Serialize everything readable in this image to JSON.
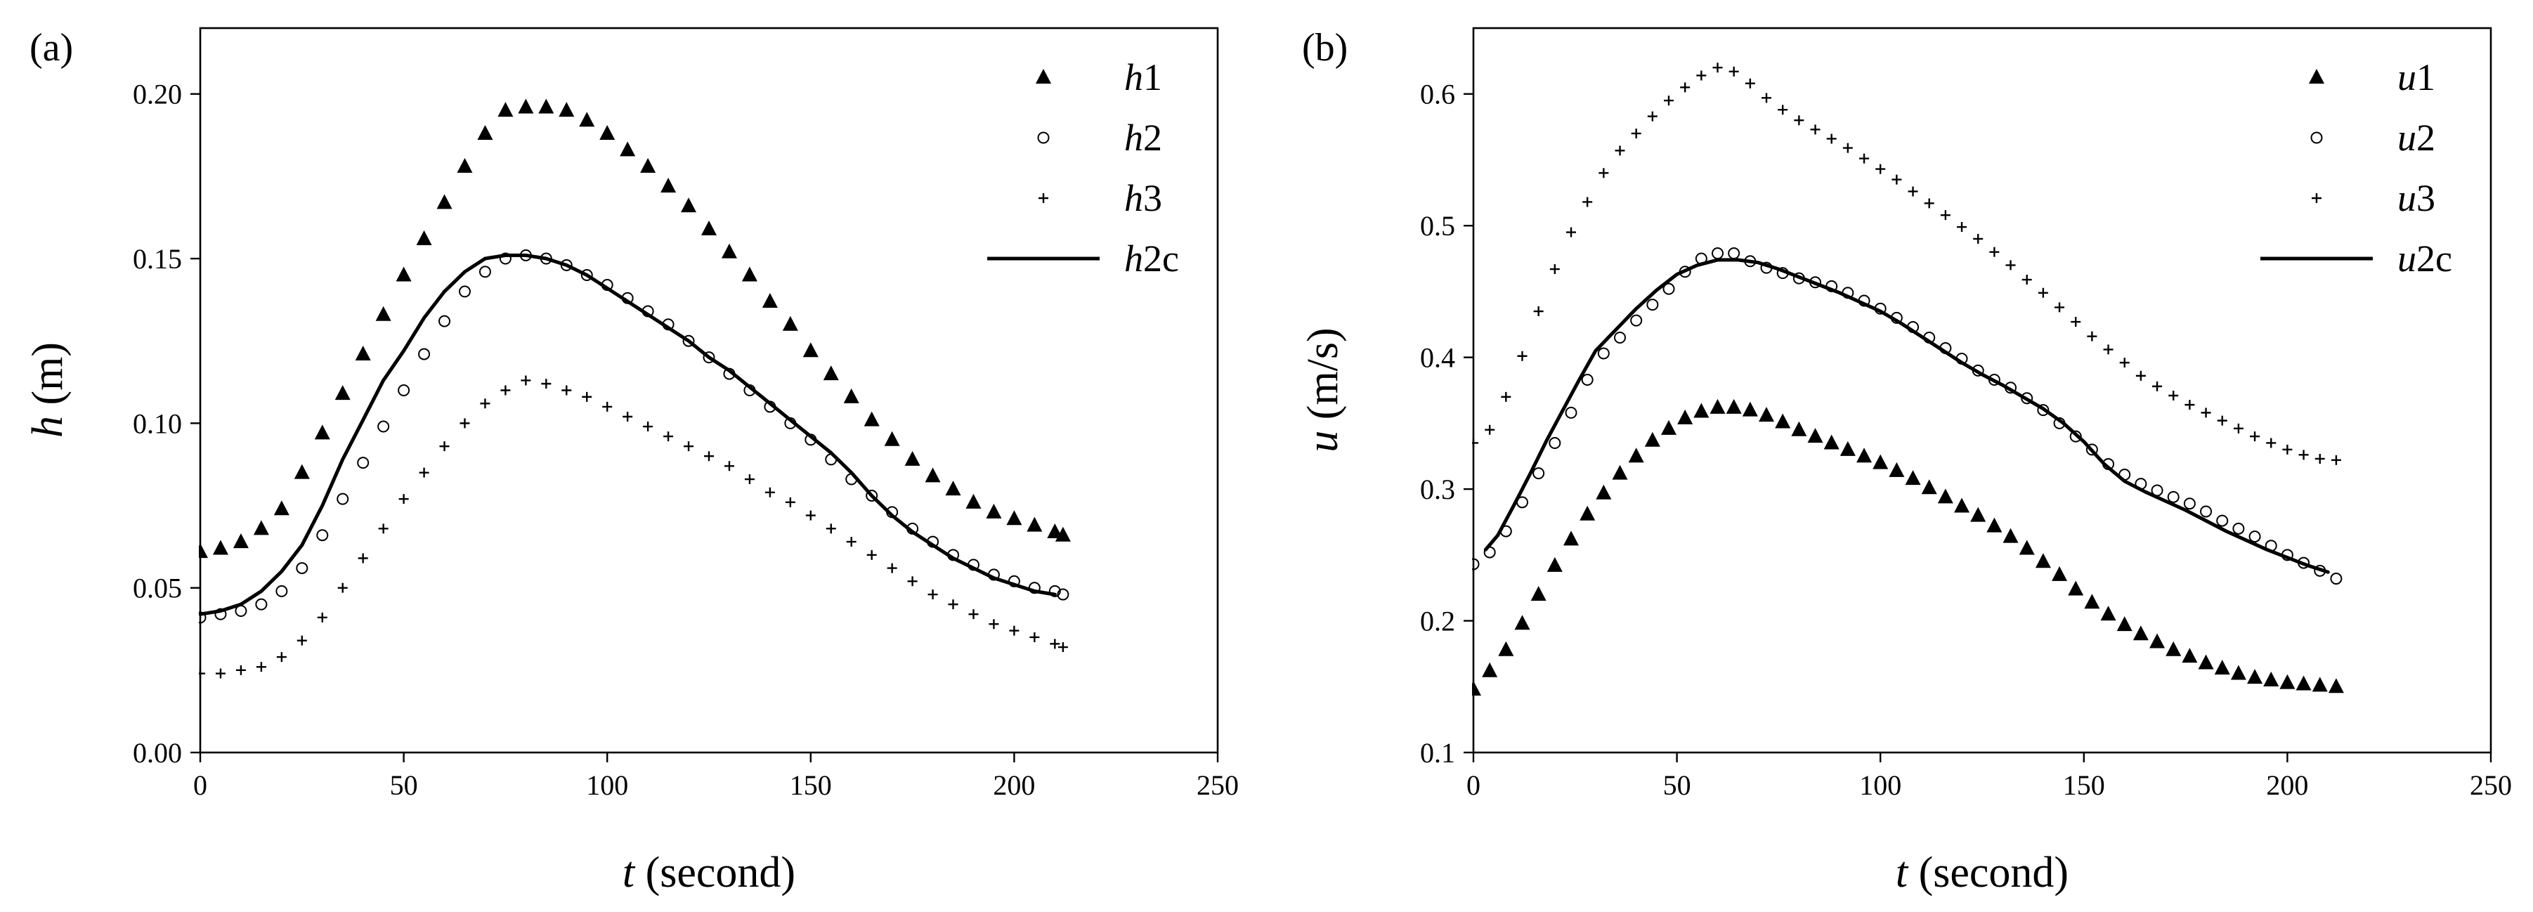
{
  "chart_data": [
    {
      "panel": "(a)",
      "type": "line",
      "xlabel": "t (second)",
      "ylabel": "h (m)",
      "xlim": [
        0,
        250
      ],
      "ylim": [
        0,
        0.22
      ],
      "xticks": [
        0,
        50,
        100,
        150,
        200,
        250
      ],
      "xtick_labels": [
        "0",
        "50",
        "100",
        "150",
        "200",
        "250"
      ],
      "yticks": [
        0,
        0.05,
        0.1,
        0.15,
        0.2
      ],
      "ytick_labels": [
        "0.00",
        "0.05",
        "0.10",
        "0.15",
        "0.20"
      ],
      "legend_position": "top-right",
      "series": [
        {
          "name": "h1",
          "marker": "triangle",
          "x": [
            0,
            5,
            10,
            15,
            20,
            25,
            30,
            35,
            40,
            45,
            50,
            55,
            60,
            65,
            70,
            75,
            80,
            85,
            90,
            95,
            100,
            105,
            110,
            115,
            120,
            125,
            130,
            135,
            140,
            145,
            150,
            155,
            160,
            165,
            170,
            175,
            180,
            185,
            190,
            195,
            200,
            205,
            210,
            212
          ],
          "y": [
            0.061,
            0.062,
            0.064,
            0.068,
            0.074,
            0.085,
            0.097,
            0.109,
            0.121,
            0.133,
            0.145,
            0.156,
            0.167,
            0.178,
            0.188,
            0.195,
            0.196,
            0.196,
            0.195,
            0.192,
            0.188,
            0.183,
            0.178,
            0.172,
            0.166,
            0.159,
            0.152,
            0.145,
            0.137,
            0.13,
            0.122,
            0.115,
            0.108,
            0.101,
            0.095,
            0.089,
            0.084,
            0.08,
            0.076,
            0.073,
            0.071,
            0.069,
            0.067,
            0.066
          ]
        },
        {
          "name": "h2",
          "marker": "circle",
          "x": [
            0,
            5,
            10,
            15,
            20,
            25,
            30,
            35,
            40,
            45,
            50,
            55,
            60,
            65,
            70,
            75,
            80,
            85,
            90,
            95,
            100,
            105,
            110,
            115,
            120,
            125,
            130,
            135,
            140,
            145,
            150,
            155,
            160,
            165,
            170,
            175,
            180,
            185,
            190,
            195,
            200,
            205,
            210,
            212
          ],
          "y": [
            0.041,
            0.042,
            0.043,
            0.045,
            0.049,
            0.056,
            0.066,
            0.077,
            0.088,
            0.099,
            0.11,
            0.121,
            0.131,
            0.14,
            0.146,
            0.15,
            0.151,
            0.15,
            0.148,
            0.145,
            0.142,
            0.138,
            0.134,
            0.13,
            0.125,
            0.12,
            0.115,
            0.11,
            0.105,
            0.1,
            0.095,
            0.089,
            0.083,
            0.078,
            0.073,
            0.068,
            0.064,
            0.06,
            0.057,
            0.054,
            0.052,
            0.05,
            0.049,
            0.048
          ]
        },
        {
          "name": "h3",
          "marker": "plus",
          "x": [
            0,
            5,
            10,
            15,
            20,
            25,
            30,
            35,
            40,
            45,
            50,
            55,
            60,
            65,
            70,
            75,
            80,
            85,
            90,
            95,
            100,
            105,
            110,
            115,
            120,
            125,
            130,
            135,
            140,
            145,
            150,
            155,
            160,
            165,
            170,
            175,
            180,
            185,
            190,
            195,
            200,
            205,
            210,
            212
          ],
          "y": [
            0.024,
            0.024,
            0.025,
            0.026,
            0.029,
            0.034,
            0.041,
            0.05,
            0.059,
            0.068,
            0.077,
            0.085,
            0.093,
            0.1,
            0.106,
            0.11,
            0.113,
            0.112,
            0.11,
            0.108,
            0.105,
            0.102,
            0.099,
            0.096,
            0.093,
            0.09,
            0.087,
            0.083,
            0.079,
            0.076,
            0.072,
            0.068,
            0.064,
            0.06,
            0.056,
            0.052,
            0.048,
            0.045,
            0.042,
            0.039,
            0.037,
            0.035,
            0.033,
            0.032
          ]
        },
        {
          "name": "h2c",
          "marker": "line",
          "x": [
            0,
            5,
            10,
            15,
            20,
            25,
            30,
            35,
            40,
            45,
            50,
            55,
            60,
            65,
            70,
            75,
            80,
            85,
            90,
            95,
            100,
            105,
            110,
            115,
            120,
            125,
            130,
            135,
            140,
            145,
            150,
            155,
            160,
            165,
            170,
            175,
            180,
            185,
            190,
            195,
            200,
            205,
            210
          ],
          "y": [
            0.042,
            0.043,
            0.045,
            0.049,
            0.055,
            0.063,
            0.075,
            0.089,
            0.101,
            0.113,
            0.122,
            0.132,
            0.14,
            0.146,
            0.15,
            0.151,
            0.151,
            0.15,
            0.148,
            0.145,
            0.141,
            0.137,
            0.133,
            0.129,
            0.125,
            0.12,
            0.116,
            0.111,
            0.106,
            0.101,
            0.096,
            0.091,
            0.085,
            0.078,
            0.072,
            0.067,
            0.063,
            0.059,
            0.056,
            0.053,
            0.051,
            0.049,
            0.048
          ]
        }
      ]
    },
    {
      "panel": "(b)",
      "type": "line",
      "xlabel": "t (second)",
      "ylabel": "u (m/s)",
      "xlim": [
        0,
        250
      ],
      "ylim": [
        0.1,
        0.65
      ],
      "xticks": [
        0,
        50,
        100,
        150,
        200,
        250
      ],
      "xtick_labels": [
        "0",
        "50",
        "100",
        "150",
        "200",
        "250"
      ],
      "yticks": [
        0.1,
        0.2,
        0.3,
        0.4,
        0.5,
        0.6
      ],
      "ytick_labels": [
        "0.1",
        "0.2",
        "0.3",
        "0.4",
        "0.5",
        "0.6"
      ],
      "legend_position": "top-right",
      "series": [
        {
          "name": "u1",
          "marker": "triangle",
          "x": [
            0,
            4,
            8,
            12,
            16,
            20,
            24,
            28,
            32,
            36,
            40,
            44,
            48,
            52,
            56,
            60,
            64,
            68,
            72,
            76,
            80,
            84,
            88,
            92,
            96,
            100,
            104,
            108,
            112,
            116,
            120,
            124,
            128,
            132,
            136,
            140,
            144,
            148,
            152,
            156,
            160,
            164,
            168,
            172,
            176,
            180,
            184,
            188,
            192,
            196,
            200,
            204,
            208,
            212
          ],
          "y": [
            0.148,
            0.162,
            0.178,
            0.198,
            0.22,
            0.242,
            0.262,
            0.281,
            0.297,
            0.312,
            0.325,
            0.337,
            0.346,
            0.354,
            0.359,
            0.362,
            0.362,
            0.36,
            0.356,
            0.351,
            0.345,
            0.34,
            0.335,
            0.33,
            0.325,
            0.32,
            0.314,
            0.308,
            0.301,
            0.294,
            0.287,
            0.28,
            0.272,
            0.264,
            0.255,
            0.245,
            0.235,
            0.224,
            0.214,
            0.205,
            0.197,
            0.19,
            0.184,
            0.178,
            0.173,
            0.168,
            0.164,
            0.16,
            0.157,
            0.155,
            0.153,
            0.152,
            0.151,
            0.15
          ]
        },
        {
          "name": "u2",
          "marker": "circle",
          "x": [
            0,
            4,
            8,
            12,
            16,
            20,
            24,
            28,
            32,
            36,
            40,
            44,
            48,
            52,
            56,
            60,
            64,
            68,
            72,
            76,
            80,
            84,
            88,
            92,
            96,
            100,
            104,
            108,
            112,
            116,
            120,
            124,
            128,
            132,
            136,
            140,
            144,
            148,
            152,
            156,
            160,
            164,
            168,
            172,
            176,
            180,
            184,
            188,
            192,
            196,
            200,
            204,
            208,
            212
          ],
          "y": [
            0.243,
            0.252,
            0.268,
            0.29,
            0.312,
            0.335,
            0.358,
            0.383,
            0.403,
            0.415,
            0.428,
            0.44,
            0.452,
            0.465,
            0.475,
            0.479,
            0.479,
            0.473,
            0.468,
            0.464,
            0.46,
            0.457,
            0.454,
            0.449,
            0.443,
            0.437,
            0.43,
            0.423,
            0.415,
            0.407,
            0.399,
            0.39,
            0.383,
            0.377,
            0.369,
            0.36,
            0.35,
            0.34,
            0.33,
            0.319,
            0.311,
            0.304,
            0.299,
            0.294,
            0.289,
            0.283,
            0.276,
            0.27,
            0.264,
            0.257,
            0.25,
            0.244,
            0.238,
            0.232
          ]
        },
        {
          "name": "u3",
          "marker": "plus",
          "x": [
            0,
            4,
            8,
            12,
            16,
            20,
            24,
            28,
            32,
            36,
            40,
            44,
            48,
            52,
            56,
            60,
            64,
            68,
            72,
            76,
            80,
            84,
            88,
            92,
            96,
            100,
            104,
            108,
            112,
            116,
            120,
            124,
            128,
            132,
            136,
            140,
            144,
            148,
            152,
            156,
            160,
            164,
            168,
            172,
            176,
            180,
            184,
            188,
            192,
            196,
            200,
            204,
            208,
            212
          ],
          "y": [
            0.335,
            0.345,
            0.37,
            0.401,
            0.435,
            0.467,
            0.495,
            0.518,
            0.54,
            0.557,
            0.57,
            0.583,
            0.595,
            0.605,
            0.614,
            0.62,
            0.617,
            0.608,
            0.597,
            0.588,
            0.58,
            0.573,
            0.566,
            0.559,
            0.551,
            0.543,
            0.535,
            0.526,
            0.517,
            0.508,
            0.499,
            0.49,
            0.48,
            0.47,
            0.459,
            0.449,
            0.438,
            0.427,
            0.416,
            0.406,
            0.396,
            0.386,
            0.378,
            0.371,
            0.364,
            0.358,
            0.352,
            0.346,
            0.34,
            0.335,
            0.33,
            0.326,
            0.323,
            0.322
          ]
        },
        {
          "name": "u2c",
          "marker": "line",
          "x": [
            3,
            6,
            10,
            14,
            18,
            22,
            26,
            30,
            35,
            40,
            45,
            50,
            55,
            60,
            65,
            70,
            75,
            80,
            85,
            90,
            95,
            100,
            105,
            110,
            115,
            120,
            125,
            130,
            135,
            140,
            145,
            150,
            155,
            160,
            165,
            170,
            175,
            180,
            185,
            190,
            195,
            200,
            205,
            210
          ],
          "y": [
            0.254,
            0.265,
            0.288,
            0.312,
            0.337,
            0.36,
            0.383,
            0.405,
            0.421,
            0.437,
            0.451,
            0.463,
            0.47,
            0.474,
            0.474,
            0.472,
            0.467,
            0.461,
            0.455,
            0.449,
            0.442,
            0.435,
            0.426,
            0.416,
            0.406,
            0.396,
            0.387,
            0.379,
            0.37,
            0.361,
            0.35,
            0.336,
            0.319,
            0.306,
            0.298,
            0.291,
            0.284,
            0.276,
            0.268,
            0.261,
            0.254,
            0.248,
            0.242,
            0.237
          ]
        }
      ]
    }
  ]
}
